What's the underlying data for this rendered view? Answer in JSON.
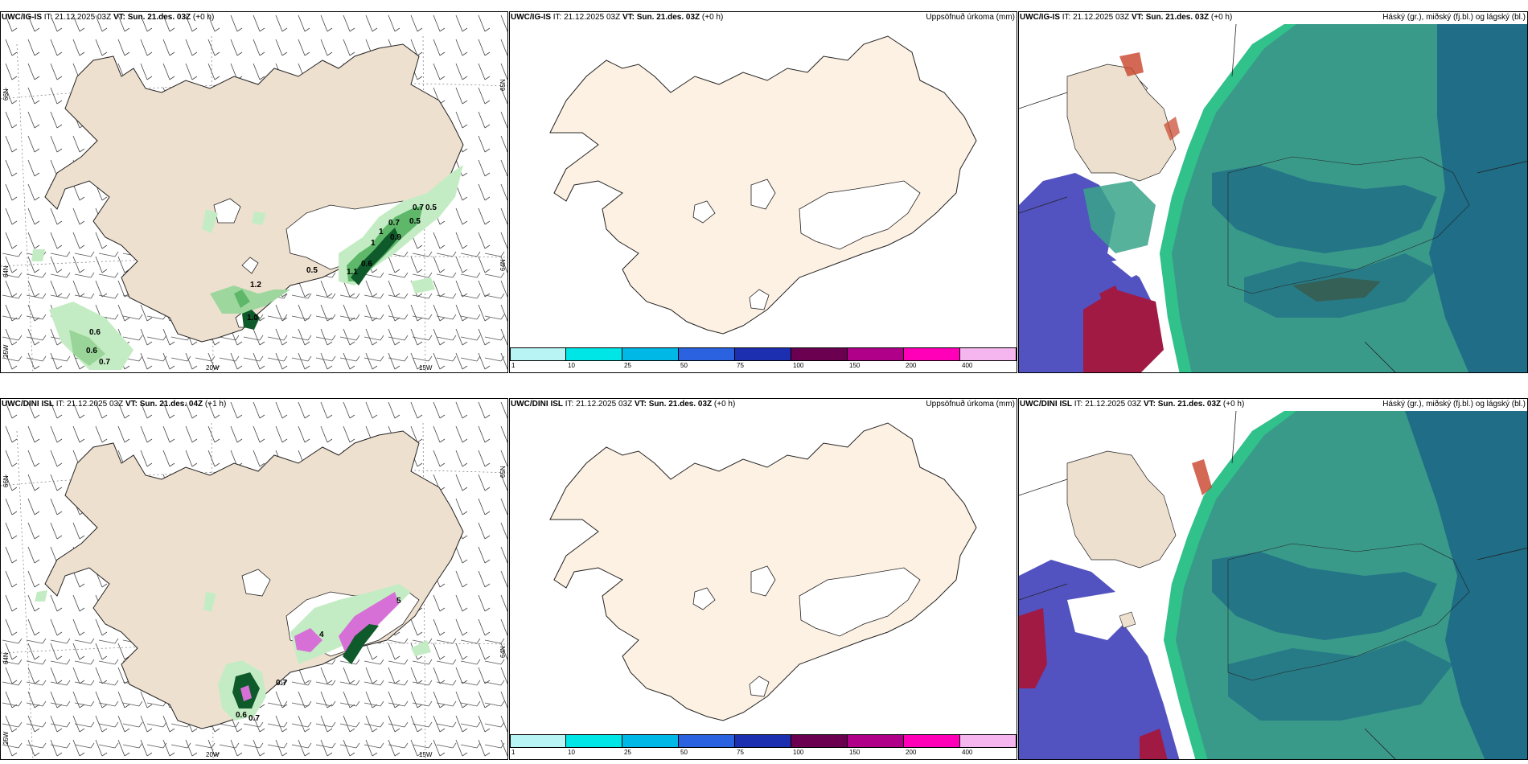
{
  "panels": [
    {
      "id": "p1",
      "title_model": "UWC/IG-IS",
      "title_it_label": "IT:",
      "title_it": "21.12.2025 03Z",
      "title_vt_label": "VT:",
      "title_vt": "Sun. 21.des. 03Z",
      "title_lead": "(+0 h)",
      "right_label": "",
      "lon_labels": [
        "20W",
        "15W"
      ],
      "lat_labels": [
        "66N",
        "64N",
        "25W",
        "65N",
        "64N"
      ],
      "values": [
        "0.5",
        "0.5",
        "0.7",
        "0.7",
        "0.5",
        "0.9",
        "1",
        "1",
        "0.6",
        "1.1",
        "1.2",
        "1.0",
        "0.6",
        "0.6",
        "0.7"
      ]
    },
    {
      "id": "p2",
      "title_model": "UWC/IG-IS",
      "title_it_label": "IT:",
      "title_it": "21.12.2025 03Z",
      "title_vt_label": "VT:",
      "title_vt": "Sun. 21.des. 03Z",
      "title_lead": "(+0 h)",
      "right_label": "Uppsöfnuð úrkoma (mm)"
    },
    {
      "id": "p3",
      "title_model": "UWC/IG-IS",
      "title_it_label": "IT:",
      "title_it": "21.12.2025 03Z",
      "title_vt_label": "VT:",
      "title_vt": "Sun. 21.des. 03Z",
      "title_lead": "(+0 h)",
      "right_label": "Háský (gr.), miðský (fj.bl.) og lágský (bl.)"
    },
    {
      "id": "p4",
      "title_model": "UWC/DINI ISL",
      "title_it_label": "IT:",
      "title_it": "21.12.2025 03Z",
      "title_vt_label": "VT:",
      "title_vt": "Sun. 21.des. 04Z",
      "title_lead": "(+1 h)",
      "right_label": "",
      "lon_labels": [
        "20W",
        "15W"
      ],
      "lat_labels": [
        "66N",
        "64N",
        "25W",
        "65N",
        "64N"
      ],
      "values": [
        "5",
        "4",
        "0.7",
        "0.6",
        "0.7"
      ]
    },
    {
      "id": "p5",
      "title_model": "UWC/DINI ISL",
      "title_it_label": "IT:",
      "title_it": "21.12.2025 03Z",
      "title_vt_label": "VT:",
      "title_vt": "Sun. 21.des. 03Z",
      "title_lead": "(+0 h)",
      "right_label": "Uppsöfnuð úrkoma (mm)"
    },
    {
      "id": "p6",
      "title_model": "UWC/DINI ISL",
      "title_it_label": "IT:",
      "title_it": "21.12.2025 03Z",
      "title_vt_label": "VT:",
      "title_vt": "Sun. 21.des. 03Z",
      "title_lead": "(+0 h)",
      "right_label": "Háský (gr.), miðský (fj.bl.) og lágský (bl.)"
    }
  ],
  "colorbar": {
    "labels": [
      "1",
      "10",
      "25",
      "50",
      "75",
      "100",
      "150",
      "200",
      "400"
    ],
    "colors": [
      "#b8f4f4",
      "#00e5e5",
      "#00b8e6",
      "#2a62e0",
      "#1c2fb0",
      "#6b0050",
      "#b0008a",
      "#ff00b8",
      "#f5b5ee"
    ]
  },
  "colors": {
    "land": "#eee0cf",
    "land_plain": "#fdf1e3",
    "precip_light": "#c4ecc4",
    "precip_mid": "#5fb86a",
    "precip_dark": "#0f5a2a",
    "snow_purple": "#d670d6",
    "cloud_high": "#3a9a8a",
    "cloud_mid": "#1f6d86",
    "cloud_low": "#5252c0",
    "cloud_red": "#a01a44"
  }
}
